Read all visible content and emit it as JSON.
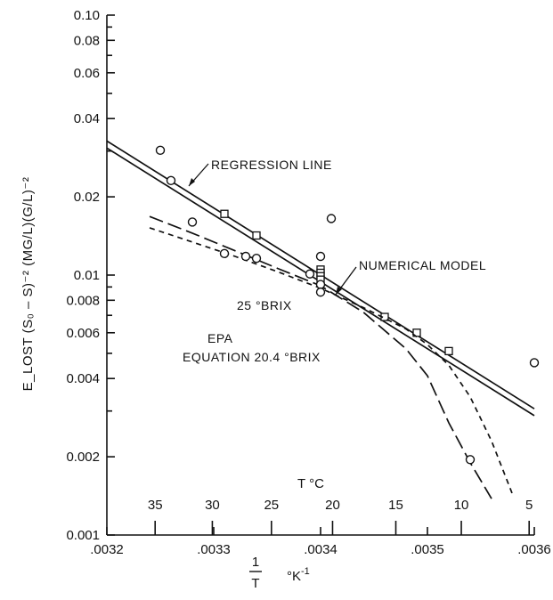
{
  "chart_data": {
    "type": "scatter",
    "title": "",
    "xlabel": "1/T  °K⁻¹",
    "ylabel": "E_LOST (S₀ – S)⁻² (MG/L)(G/L)⁻²",
    "top_axis_label": "T °C",
    "x_scale": "linear",
    "y_scale": "log",
    "xlim": [
      0.0032,
      0.0036
    ],
    "ylim": [
      0.001,
      0.1
    ],
    "grid": false,
    "x_ticks": [
      {
        "value": 0.0032,
        "label": ".0032"
      },
      {
        "value": 0.0033,
        "label": ".0033"
      },
      {
        "value": 0.0034,
        "label": ".0034"
      },
      {
        "value": 0.0035,
        "label": ".0035"
      },
      {
        "value": 0.0036,
        "label": ".0036"
      }
    ],
    "y_ticks": [
      {
        "value": 0.001,
        "label": "0.001"
      },
      {
        "value": 0.002,
        "label": "0.002"
      },
      {
        "value": 0.004,
        "label": "0.004"
      },
      {
        "value": 0.006,
        "label": "0.006"
      },
      {
        "value": 0.008,
        "label": "0.008"
      },
      {
        "value": 0.01,
        "label": "0.01"
      },
      {
        "value": 0.02,
        "label": "0.02"
      },
      {
        "value": 0.04,
        "label": "0.04"
      },
      {
        "value": 0.06,
        "label": "0.06"
      },
      {
        "value": 0.08,
        "label": "0.08"
      },
      {
        "value": 0.1,
        "label": "0.10"
      }
    ],
    "y_minor_ticks": [
      0.003,
      0.005,
      0.007,
      0.009,
      0.03,
      0.05,
      0.07,
      0.09
    ],
    "top_ticks": [
      {
        "label": "35",
        "value_c": 35
      },
      {
        "label": "30",
        "value_c": 30
      },
      {
        "label": "25",
        "value_c": 25
      },
      {
        "label": "20",
        "value_c": 20
      },
      {
        "label": "15",
        "value_c": 15
      },
      {
        "label": "10",
        "value_c": 10
      },
      {
        "label": "5",
        "value_c": 5
      }
    ],
    "series": [
      {
        "name": "REGRESSION LINE",
        "style": "solid",
        "points": [
          [
            0.0032,
            0.0328
          ],
          [
            0.0036,
            0.00306
          ]
        ]
      },
      {
        "name": "NUMERICAL MODEL",
        "style": "solid",
        "points": [
          [
            0.0032,
            0.0308
          ],
          [
            0.0036,
            0.00288
          ]
        ],
        "markers": "square",
        "marker_points": [
          [
            0.00331,
            0.0172
          ],
          [
            0.00334,
            0.0142
          ],
          [
            0.0034,
            0.0105
          ],
          [
            0.0034,
            0.0102
          ],
          [
            0.0034,
            0.0099
          ],
          [
            0.0034,
            0.0096
          ],
          [
            0.00346,
            0.0069
          ],
          [
            0.00349,
            0.006
          ],
          [
            0.00352,
            0.0051
          ]
        ]
      },
      {
        "name": "25 °BRIX",
        "style": "long-dash",
        "points": [
          [
            0.00324,
            0.0168
          ],
          [
            0.00328,
            0.0145
          ],
          [
            0.00332,
            0.0124
          ],
          [
            0.00336,
            0.0106
          ],
          [
            0.0034,
            0.0091
          ],
          [
            0.00344,
            0.0072
          ],
          [
            0.00348,
            0.0052
          ],
          [
            0.0035,
            0.0041
          ],
          [
            0.00352,
            0.0027
          ],
          [
            0.00354,
            0.0019
          ],
          [
            0.00356,
            0.00138
          ]
        ]
      },
      {
        "name": "EPA EQUATION 20.4 °BRIX",
        "style": "short-dash",
        "points": [
          [
            0.00324,
            0.0152
          ],
          [
            0.00328,
            0.0134
          ],
          [
            0.00332,
            0.0118
          ],
          [
            0.00336,
            0.0103
          ],
          [
            0.0034,
            0.0089
          ],
          [
            0.00344,
            0.0075
          ],
          [
            0.00348,
            0.0062
          ],
          [
            0.0035,
            0.0054
          ],
          [
            0.00352,
            0.0045
          ],
          [
            0.00354,
            0.0034
          ],
          [
            0.00356,
            0.0023
          ],
          [
            0.00358,
            0.00142
          ]
        ]
      },
      {
        "name": "",
        "style": "open-circle",
        "points": [
          [
            0.00325,
            0.0302
          ],
          [
            0.00326,
            0.0231
          ],
          [
            0.00328,
            0.016
          ],
          [
            0.00331,
            0.0121
          ],
          [
            0.00333,
            0.0118
          ],
          [
            0.00334,
            0.0116
          ],
          [
            0.00339,
            0.0101
          ],
          [
            0.0034,
            0.0092
          ],
          [
            0.0034,
            0.0086
          ],
          [
            0.0034,
            0.0118
          ],
          [
            0.00341,
            0.0165
          ],
          [
            0.00354,
            0.00195
          ],
          [
            0.0036,
            0.0046
          ]
        ]
      }
    ],
    "annotations": {
      "regression": "REGRESSION LINE",
      "numerical": "NUMERICAL MODEL",
      "brix25": "25 °BRIX",
      "epa_line1": "EPA",
      "epa_line2": "EQUATION  20.4 °BRIX"
    },
    "bottom_label_num": "1",
    "bottom_label_den": "T",
    "bottom_label_unit": "°K",
    "bottom_label_exp": "-1"
  }
}
